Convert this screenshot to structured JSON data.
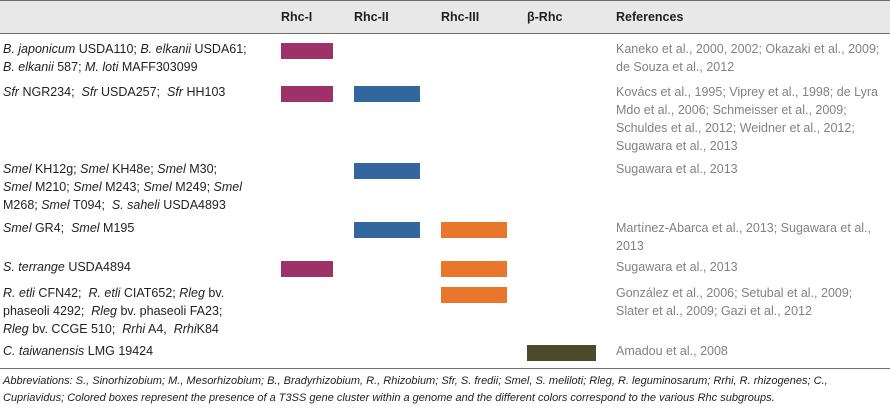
{
  "header": {
    "col_rhc1": "Rhc-I",
    "col_rhc2": "Rhc-II",
    "col_rhc3": "Rhc-III",
    "col_beta": "β-Rhc",
    "col_refs": "References"
  },
  "colors": {
    "rhc1": "#9e3268",
    "rhc2": "#33669f",
    "rhc3": "#e8762d",
    "beta": "#4c4a2a"
  },
  "rows": [
    {
      "organisms_html": "<i>B. japonicum</i> USDA110; <i>B. elkanii</i> USDA61;<br><i>B. elkanii</i> 587; <i>M. loti</i> MAFF303099",
      "rhc": [
        "rhc1"
      ],
      "references": "Kaneko et al., 2000, 2002; Okazaki et al., 2009; de Souza et al., 2012"
    },
    {
      "organisms_html": "<i>Sfr</i> NGR234; &nbsp;<i>Sfr</i> USDA257; &nbsp;<i>Sfr</i> HH103",
      "rhc": [
        "rhc1",
        "rhc2"
      ],
      "references": "Kovács et al., 1995; Viprey et al., 1998; de Lyra Mdo et al., 2006; Schmeisser et al., 2009; Schuldes et al., 2012; Weidner et al., 2012; Sugawara et al., 2013"
    },
    {
      "organisms_html": "<i>Smel</i> KH12g; <i>Smel</i> KH48e; <i>Smel</i> M30;<br><i>Smel</i> M210; <i>Smel</i> M243; <i>Smel</i> M249; <i>Smel</i><br>M268; <i>Smel</i> T094; &nbsp;<i>S. saheli</i> USDA4893",
      "rhc": [
        "rhc2"
      ],
      "references": "Sugawara et al., 2013"
    },
    {
      "organisms_html": "<i>Smel</i> GR4; &nbsp;<i>Smel</i> M195",
      "rhc": [
        "rhc2",
        "rhc3"
      ],
      "references": "Martínez-Abarca et al., 2013; Sugawara et al., 2013"
    },
    {
      "organisms_html": "<i>S. terrange</i> USDA4894",
      "rhc": [
        "rhc1",
        "rhc3"
      ],
      "references": "Sugawara et al., 2013"
    },
    {
      "organisms_html": "<i>R. etli</i> CFN42; &nbsp;<i>R. etli</i> CIAT652; <i>Rleg</i> bv.<br>phaseoli 4292; &nbsp;<i>Rleg</i> bv. phaseoli FA23;<br><i>Rleg</i> bv. CCGE 510; &nbsp;<i>Rrhi</i> A4, &nbsp;<i>Rrhi</i>K84",
      "rhc": [
        "rhc3"
      ],
      "references": "González et al., 2006; Setubal et al., 2009; Slater et al., 2009; Gazi et al., 2012"
    },
    {
      "organisms_html": "<i>C. taiwanensis</i> LMG 19424",
      "rhc": [
        "beta"
      ],
      "references": "Amadou et al., 2008"
    }
  ],
  "footnote": "Abbreviations: S., Sinorhizobium; M., Mesorhizobium; B., Bradyrhizobium, R., Rhizobium; Sfr, S. fredii; Smel, S. meliloti; Rleg, R. leguminosarum; Rrhi, R. rhizogenes; C., Cupriavidus; Colored boxes represent the presence of a T3SS gene cluster within a genome and the different colors correspond to the various Rhc subgroups."
}
